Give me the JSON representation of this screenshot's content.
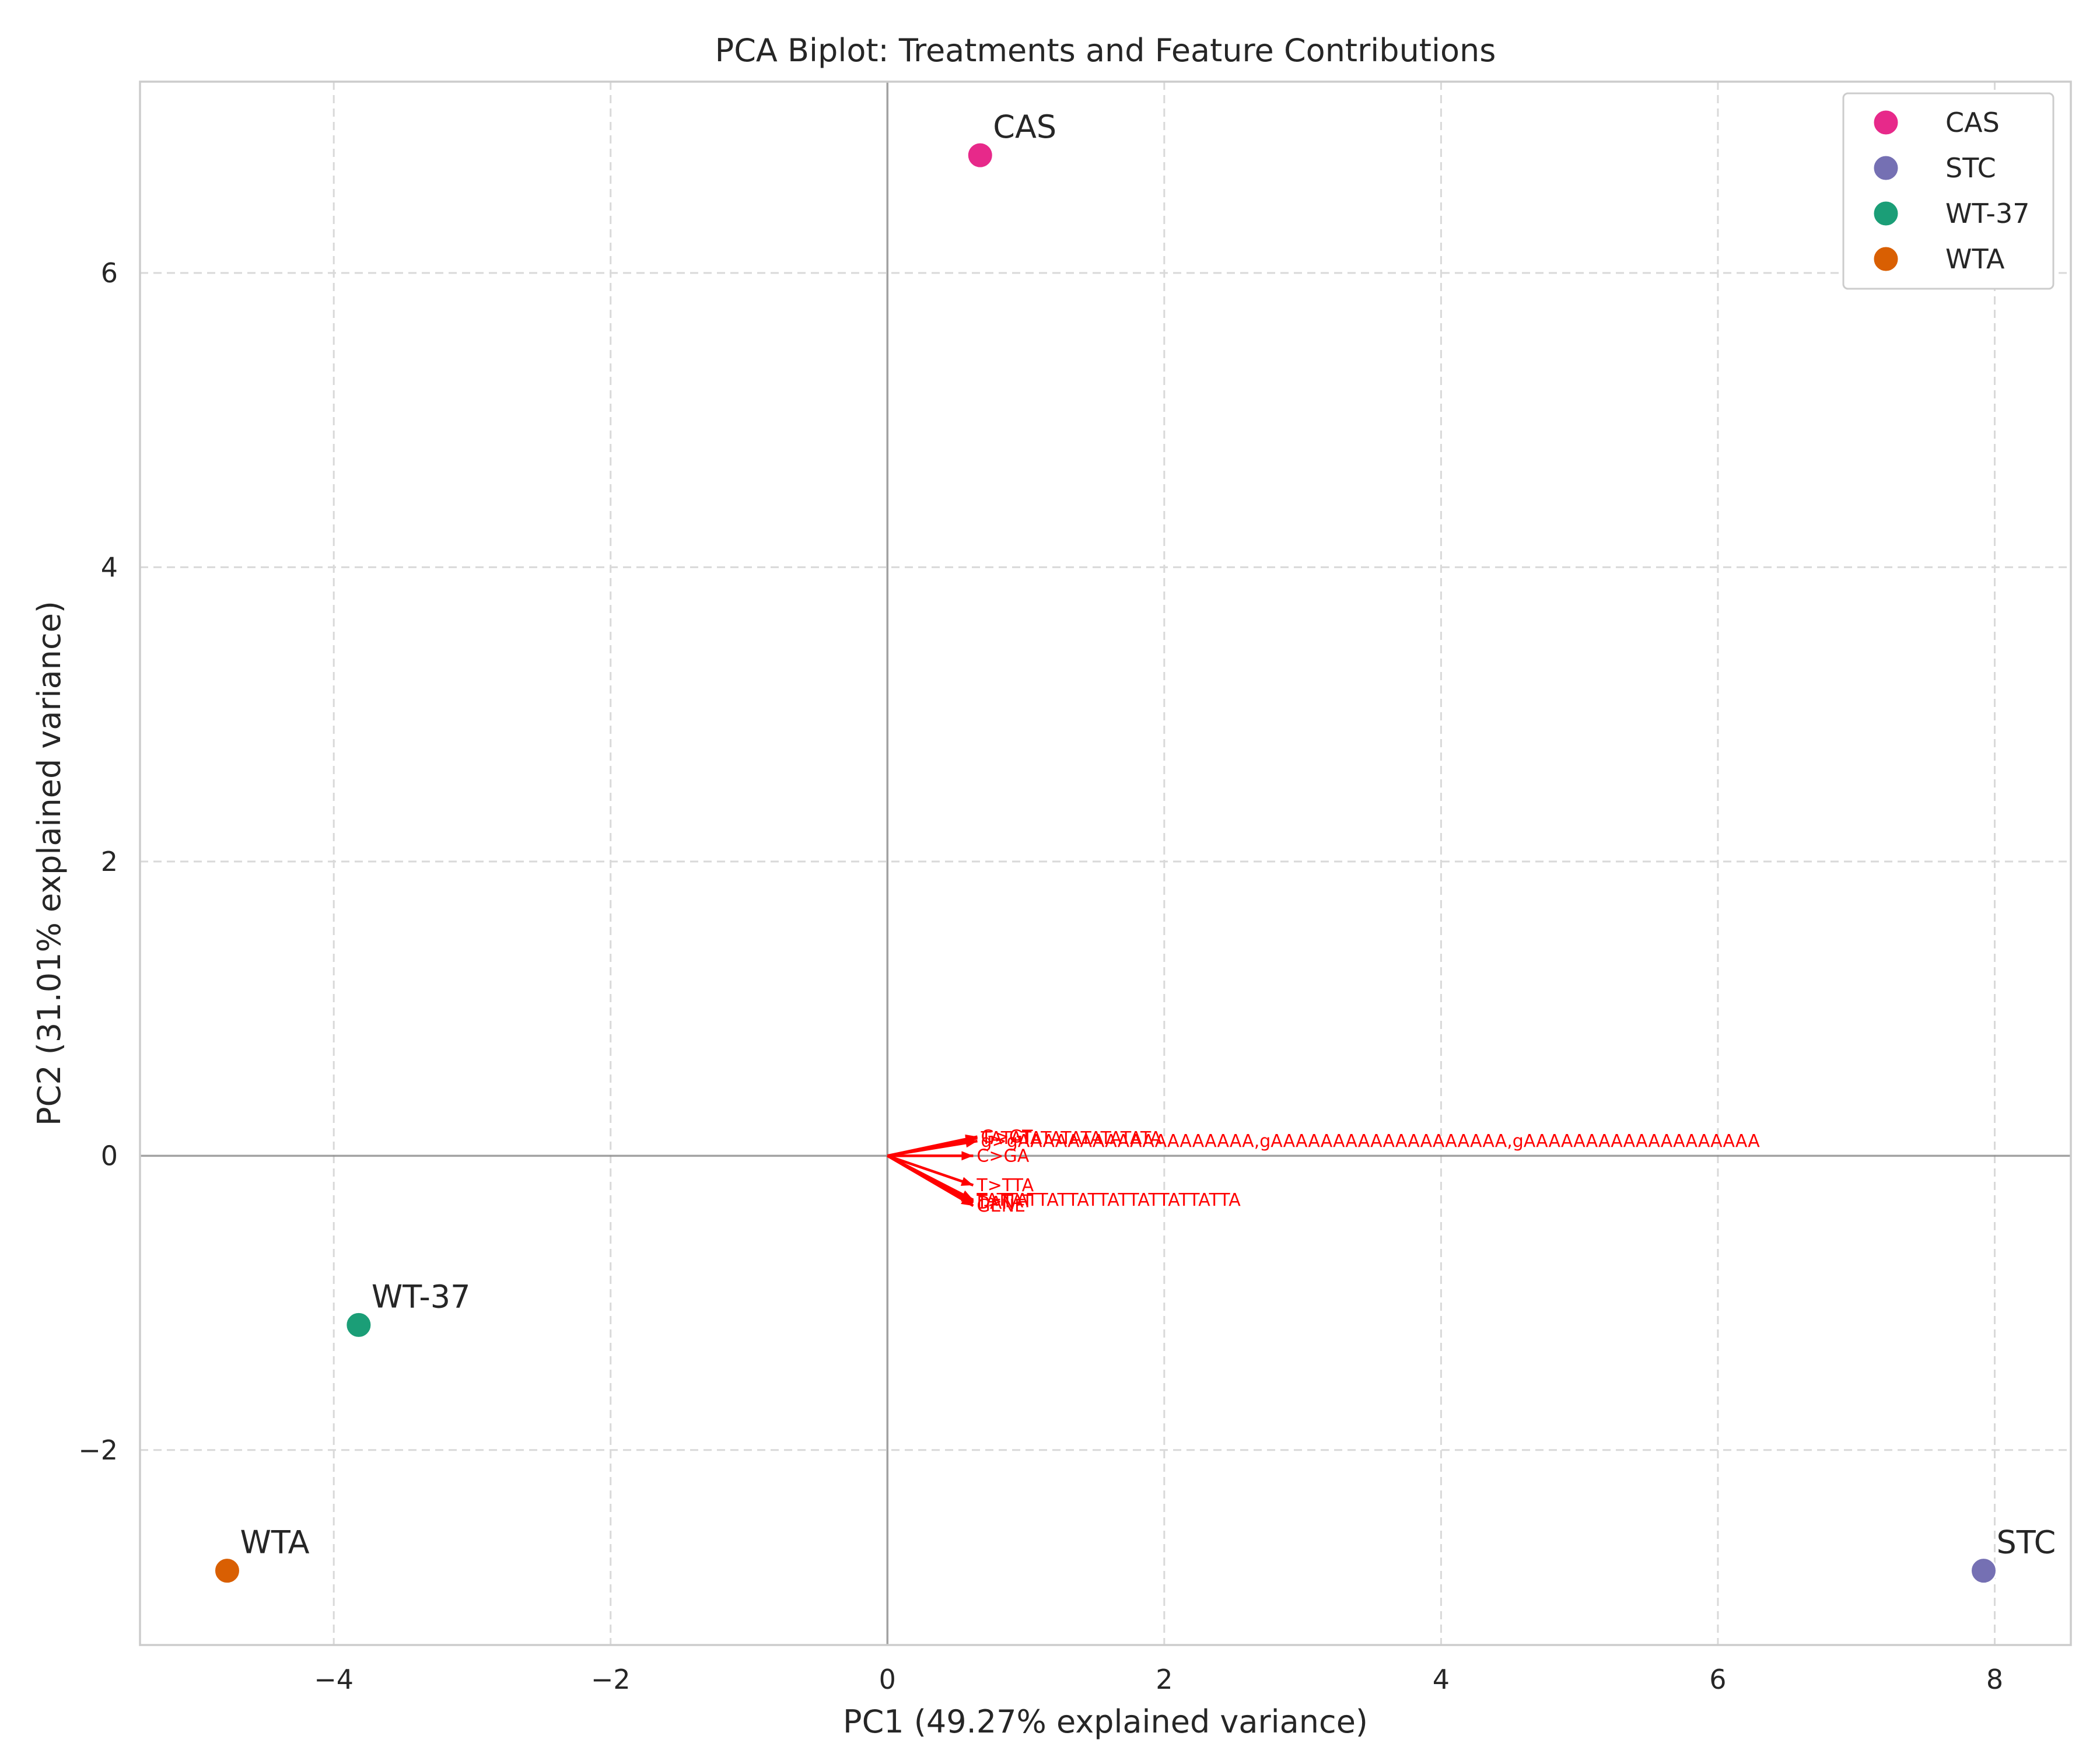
{
  "chart_data": {
    "type": "scatter",
    "title": "PCA Biplot: Treatments and Feature Contributions",
    "xlabel": "PC1 (49.27% explained variance)",
    "ylabel": "PC2 (31.01% explained variance)",
    "xlim": [
      -5.4,
      8.55
    ],
    "ylim": [
      -3.325,
      7.3
    ],
    "xticks": [
      -4,
      -2,
      0,
      2,
      4,
      6,
      8
    ],
    "xtick_labels": [
      "−4",
      "−2",
      "0",
      "2",
      "4",
      "6",
      "8"
    ],
    "yticks": [
      -2,
      0,
      2,
      4,
      6
    ],
    "ytick_labels": [
      "−2",
      "0",
      "2",
      "4",
      "6"
    ],
    "grid": true,
    "legend_position": "top-right",
    "points": [
      {
        "label": "CAS",
        "x": 0.67,
        "y": 6.8,
        "color": "#e7298a"
      },
      {
        "label": "STC",
        "x": 7.92,
        "y": -2.82,
        "color": "#7570b3"
      },
      {
        "label": "WT-37",
        "x": -3.82,
        "y": -1.15,
        "color": "#1b9e77"
      },
      {
        "label": "WTA",
        "x": -4.77,
        "y": -2.82,
        "color": "#d95f02"
      }
    ],
    "loadings": [
      {
        "label": "C>GA",
        "x": 0.62,
        "y": 0.0
      },
      {
        "label": "T>TTA",
        "x": 0.62,
        "y": -0.2
      },
      {
        "label": "TATTATTATTATTATTATTATTATTA",
        "x": 0.62,
        "y": -0.3
      },
      {
        "label": "DAN",
        "x": 0.62,
        "y": -0.32
      },
      {
        "label": "GENE",
        "x": 0.62,
        "y": -0.34
      },
      {
        "label": "T>TAT",
        "x": 0.62,
        "y": -0.31
      },
      {
        "label": "TATATATATATATATATA",
        "x": 0.65,
        "y": 0.12
      },
      {
        "label": "g>gAAAAAAAAAAAAAAAAAAA,gAAAAAAAAAAAAAAAAAAA,gAAAAAAAAAAAAAAAAAAA",
        "x": 0.65,
        "y": 0.1
      },
      {
        "label": "G>GT",
        "x": 0.65,
        "y": 0.13
      }
    ],
    "loading_color": "#ff0000"
  }
}
